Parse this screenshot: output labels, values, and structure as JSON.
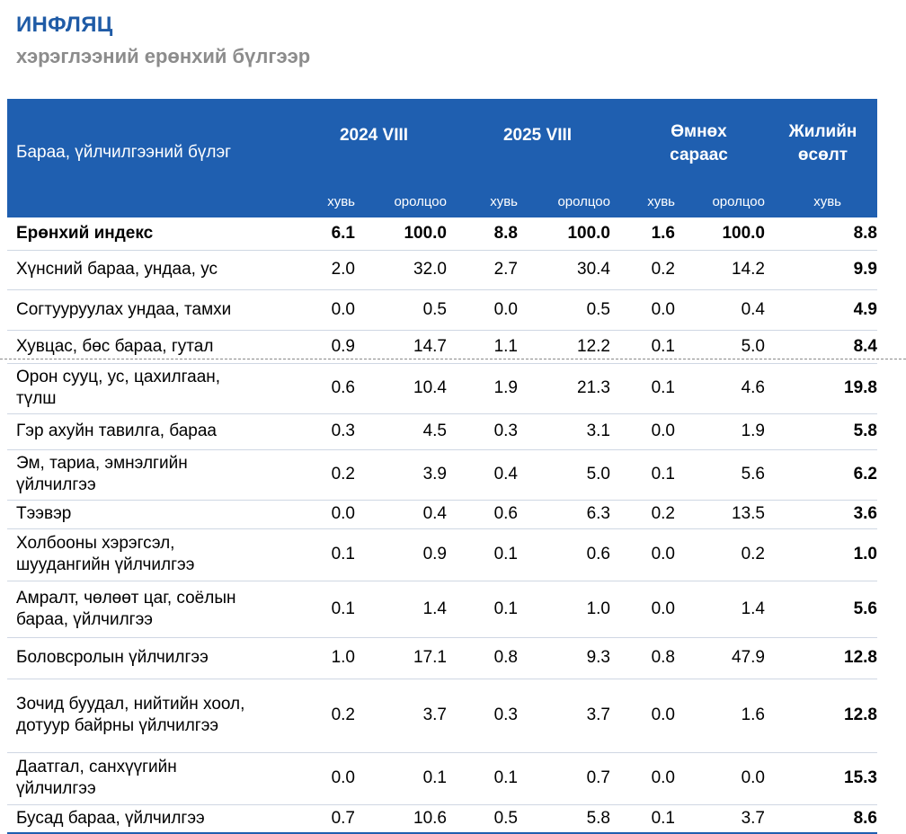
{
  "title": "ИНФЛЯЦ",
  "subtitle": "хэрэглээний ерөнхий бүлгээр",
  "table": {
    "header": {
      "category_label": "Бараа, үйлчилгээний бүлэг",
      "groups": [
        "2024 VIII",
        "2025 VIII",
        "Өмнөх сараас",
        "Жилийн өсөлт"
      ],
      "sub": [
        "хувь",
        "оролцоо",
        "хувь",
        "оролцоо",
        "хувь",
        "оролцоо",
        "хувь"
      ]
    },
    "rows": [
      {
        "name": "Ерөнхий индекс",
        "v": [
          "6.1",
          "100.0",
          "8.8",
          "100.0",
          "1.6",
          "100.0",
          "8.8"
        ]
      },
      {
        "name": "Хүнсний бараа, ундаа, ус",
        "v": [
          "2.0",
          "32.0",
          "2.7",
          "30.4",
          "0.2",
          "14.2",
          "9.9"
        ]
      },
      {
        "name": "Согтууруулах ундаа, тамхи",
        "v": [
          "0.0",
          "0.5",
          "0.0",
          "0.5",
          "0.0",
          "0.4",
          "4.9"
        ]
      },
      {
        "name": "Хувцас, бөс бараа, гутал",
        "v": [
          "0.9",
          "14.7",
          "1.1",
          "12.2",
          "0.1",
          "5.0",
          "8.4"
        ]
      },
      {
        "name": "Орон сууц, ус, цахилгаан, түлш",
        "v": [
          "0.6",
          "10.4",
          "1.9",
          "21.3",
          "0.1",
          "4.6",
          "19.8"
        ]
      },
      {
        "name": "Гэр ахуйн тавилга, бараа",
        "v": [
          "0.3",
          "4.5",
          "0.3",
          "3.1",
          "0.0",
          "1.9",
          "5.8"
        ]
      },
      {
        "name": "Эм, тариа, эмнэлгийн үйлчилгээ",
        "v": [
          "0.2",
          "3.9",
          "0.4",
          "5.0",
          "0.1",
          "5.6",
          "6.2"
        ]
      },
      {
        "name": "Тээвэр",
        "v": [
          "0.0",
          "0.4",
          "0.6",
          "6.3",
          "0.2",
          "13.5",
          "3.6"
        ]
      },
      {
        "name": "Холбооны хэрэгсэл, шуудангийн үйлчилгээ",
        "v": [
          "0.1",
          "0.9",
          "0.1",
          "0.6",
          "0.0",
          "0.2",
          "1.0"
        ]
      },
      {
        "name": "Амралт, чөлөөт цаг, соёлын бараа, үйлчилгээ",
        "v": [
          "0.1",
          "1.4",
          "0.1",
          "1.0",
          "0.0",
          "1.4",
          "5.6"
        ]
      },
      {
        "name": "Боловсролын үйлчилгээ",
        "v": [
          "1.0",
          "17.1",
          "0.8",
          "9.3",
          "0.8",
          "47.9",
          "12.8"
        ]
      },
      {
        "name": "Зочид буудал, нийтийн хоол, дотуур байрны үйлчилгээ",
        "v": [
          "0.2",
          "3.7",
          "0.3",
          "3.7",
          "0.0",
          "1.6",
          "12.8"
        ]
      },
      {
        "name": "Даатгал, санхүүгийн үйлчилгээ",
        "v": [
          "0.0",
          "0.1",
          "0.1",
          "0.7",
          "0.0",
          "0.0",
          "15.3"
        ]
      },
      {
        "name": "Бусад бараа, үйлчилгээ",
        "v": [
          "0.7",
          "10.6",
          "0.5",
          "5.8",
          "0.1",
          "3.7",
          "8.6"
        ]
      }
    ]
  }
}
